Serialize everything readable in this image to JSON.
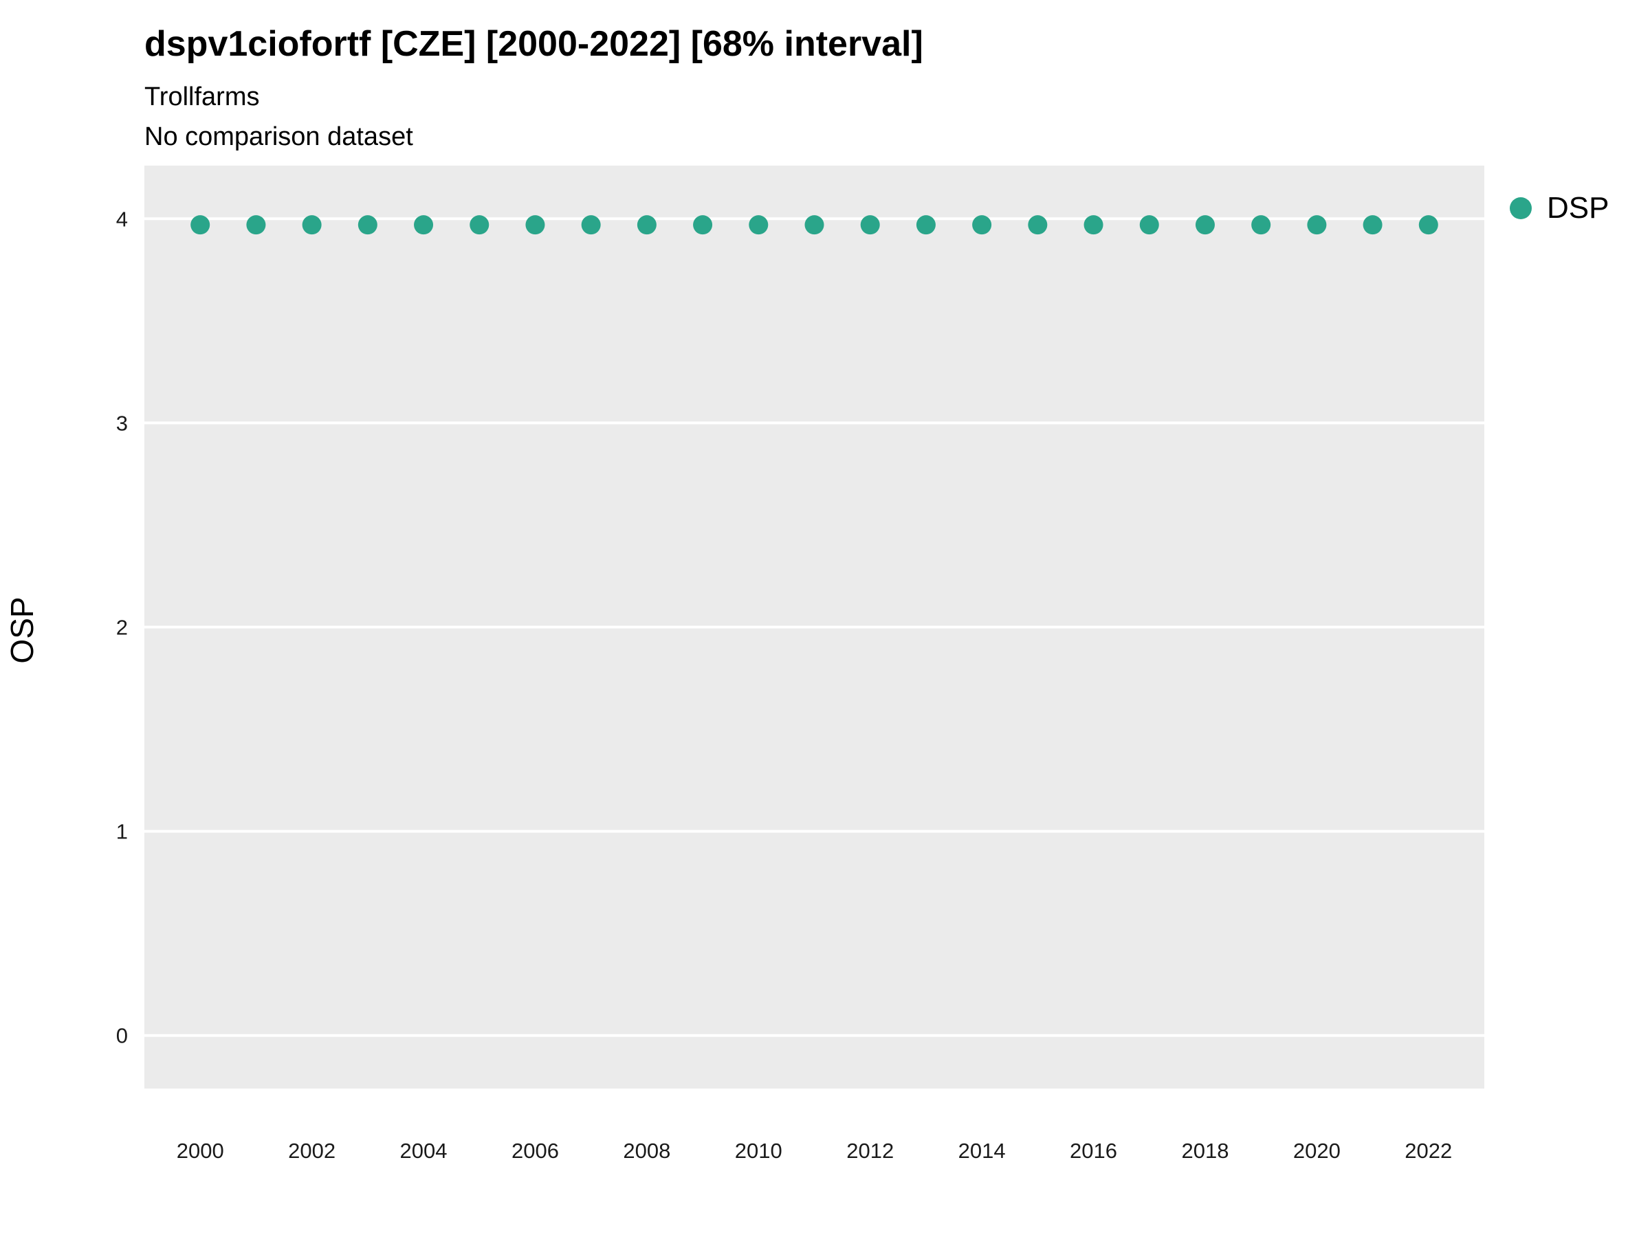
{
  "header": {
    "title": "dspv1ciofortf [CZE] [2000-2022] [68% interval]",
    "subtitle": "Trollfarms",
    "note": "No comparison dataset"
  },
  "axes": {
    "y_label": "OSP",
    "y_ticks": [
      0,
      1,
      2,
      3,
      4
    ],
    "x_ticks": [
      2000,
      2002,
      2004,
      2006,
      2008,
      2010,
      2012,
      2014,
      2016,
      2018,
      2020,
      2022
    ]
  },
  "legend": {
    "label": "DSP",
    "color": "#2aa58a"
  },
  "chart_data": {
    "type": "scatter",
    "title": "dspv1ciofortf [CZE] [2000-2022] [68% interval]",
    "subtitle": "Trollfarms",
    "note": "No comparison dataset",
    "xlabel": "",
    "ylabel": "OSP",
    "xlim": [
      1999,
      2023
    ],
    "ylim": [
      -0.26,
      4.26
    ],
    "x_ticks": [
      2000,
      2002,
      2004,
      2006,
      2008,
      2010,
      2012,
      2014,
      2016,
      2018,
      2020,
      2022
    ],
    "y_ticks": [
      0,
      1,
      2,
      3,
      4
    ],
    "grid": "major-horizontal-white",
    "panel_background": "#ebebeb",
    "gridline_color": "#ffffff",
    "legend_position": "right",
    "series": [
      {
        "name": "DSP",
        "color": "#2aa58a",
        "marker": "circle",
        "x": [
          2000,
          2001,
          2002,
          2003,
          2004,
          2005,
          2006,
          2007,
          2008,
          2009,
          2010,
          2011,
          2012,
          2013,
          2014,
          2015,
          2016,
          2017,
          2018,
          2019,
          2020,
          2021,
          2022
        ],
        "y": [
          3.97,
          3.97,
          3.97,
          3.97,
          3.97,
          3.97,
          3.97,
          3.97,
          3.97,
          3.97,
          3.97,
          3.97,
          3.97,
          3.97,
          3.97,
          3.97,
          3.97,
          3.97,
          3.97,
          3.97,
          3.97,
          3.97,
          3.97
        ]
      }
    ]
  }
}
